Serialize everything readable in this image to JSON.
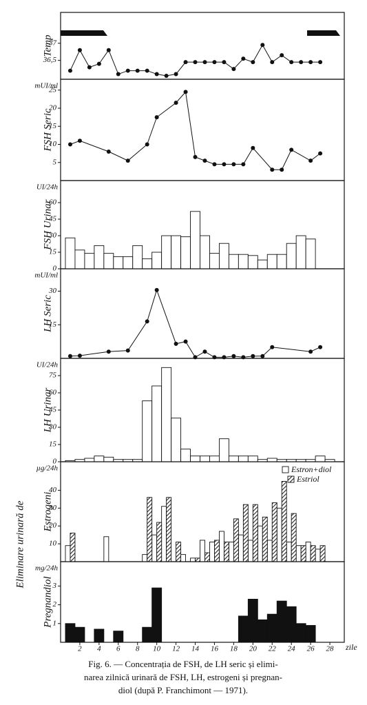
{
  "chart_data": [
    {
      "type": "line",
      "ylabel": "Temp",
      "xlim": [
        0,
        29.5
      ],
      "ylim": [
        35.95,
        37.9
      ],
      "yticks": [
        {
          "value": 36.5,
          "label": "36,5"
        },
        37
      ],
      "x": [
        1,
        2,
        3,
        4,
        5,
        6,
        7,
        8,
        9,
        10,
        11,
        12,
        13,
        14,
        15,
        16,
        17,
        18,
        19,
        20,
        21,
        22,
        23,
        24,
        25,
        26,
        27
      ],
      "values": [
        36.2,
        36.8,
        36.3,
        36.4,
        36.8,
        36.1,
        36.2,
        36.2,
        36.2,
        36.1,
        36.05,
        36.1,
        36.45,
        36.45,
        36.45,
        36.45,
        36.45,
        36.25,
        36.55,
        36.45,
        36.95,
        36.45,
        36.65,
        36.45,
        36.45,
        36.45,
        36.45
      ],
      "color": "#111111"
    },
    {
      "type": "line",
      "ylabel": "FSH Seric",
      "unit": "mUI/ml",
      "xlim": [
        0,
        29.5
      ],
      "ylim": [
        0,
        28
      ],
      "yticks": [
        5,
        10,
        15,
        20,
        25
      ],
      "x": [
        1,
        2,
        5,
        7,
        9,
        10,
        12,
        13,
        14,
        15,
        16,
        17,
        18,
        19,
        20,
        22,
        23,
        24,
        26,
        27
      ],
      "values": [
        10,
        11,
        8,
        5.5,
        10,
        17.5,
        21.5,
        24.5,
        6.5,
        5.5,
        4.5,
        4.5,
        4.5,
        4.5,
        9,
        3,
        3,
        8.5,
        5.5,
        7.5
      ],
      "color": "#111111"
    },
    {
      "type": "bar",
      "ylabel": "FSH Urinar",
      "unit": "UI/24h",
      "xlim": [
        0,
        29.5
      ],
      "ylim": [
        0,
        80
      ],
      "yticks": [
        0,
        15,
        30,
        45,
        60
      ],
      "x": [
        1,
        2,
        3,
        4,
        5,
        6,
        7,
        8,
        9,
        10,
        11,
        12,
        13,
        14,
        15,
        16,
        17,
        18,
        19,
        20,
        21,
        22,
        23,
        24,
        25,
        26
      ],
      "values": [
        28,
        17,
        14,
        21,
        14,
        11,
        11,
        21,
        9,
        15,
        30,
        30,
        29,
        52,
        30,
        14,
        23,
        13,
        13,
        12,
        8,
        13,
        13,
        23,
        30,
        27
      ],
      "color": "#ffffff"
    },
    {
      "type": "line",
      "ylabel": "LH Seric",
      "unit": "mUI/ml",
      "xlim": [
        0,
        29.5
      ],
      "ylim": [
        0,
        40
      ],
      "yticks": [
        15,
        30
      ],
      "x": [
        1,
        2,
        5,
        7,
        9,
        10,
        12,
        13,
        14,
        15,
        16,
        17,
        18,
        19,
        20,
        21,
        22,
        26,
        27
      ],
      "values": [
        1,
        1.2,
        3,
        3.5,
        16.5,
        30.5,
        6.5,
        7.5,
        0.5,
        3,
        0.5,
        0.5,
        1,
        0.5,
        1,
        1,
        5,
        3,
        5
      ],
      "color": "#111111"
    },
    {
      "type": "bar",
      "ylabel": "LH Urinar",
      "unit": "UI/24h",
      "xlim": [
        0,
        29.5
      ],
      "ylim": [
        0,
        90
      ],
      "yticks": [
        0,
        15,
        30,
        45,
        60,
        75
      ],
      "x": [
        1,
        2,
        3,
        4,
        5,
        6,
        7,
        8,
        9,
        10,
        11,
        12,
        13,
        14,
        15,
        16,
        17,
        18,
        19,
        20,
        21,
        22,
        23,
        24,
        25,
        26,
        27,
        28
      ],
      "values": [
        1,
        2,
        3,
        5,
        4,
        2,
        2,
        2,
        53,
        66,
        82,
        38,
        11,
        5,
        5,
        5,
        20,
        5,
        5,
        5,
        2,
        3,
        2,
        2,
        2,
        2,
        5,
        2
      ],
      "color": "#ffffff"
    },
    {
      "type": "bar",
      "ylabel": "Estrogeni",
      "unit": "µg/24h",
      "xlim": [
        0,
        29.5
      ],
      "ylim": [
        0,
        56
      ],
      "yticks": [
        10,
        20,
        30,
        40
      ],
      "legend": "upper right",
      "x": [
        1,
        2,
        3,
        4,
        5,
        6,
        7,
        8,
        9,
        10,
        11,
        12,
        13,
        14,
        15,
        16,
        17,
        18,
        19,
        20,
        21,
        22,
        23,
        24,
        25,
        26,
        27
      ],
      "series": [
        {
          "name": "Estron+diol",
          "color": "#ffffff",
          "values": [
            9,
            null,
            null,
            null,
            14,
            null,
            null,
            null,
            4,
            15,
            31,
            null,
            4,
            2,
            12,
            11,
            17,
            11,
            15,
            12,
            20,
            12,
            30,
            11,
            9,
            11,
            7
          ]
        },
        {
          "name": "Estriol",
          "color": "#333333",
          "pattern": "hatch",
          "values": [
            16,
            null,
            null,
            null,
            null,
            null,
            null,
            null,
            36,
            22,
            36,
            11,
            null,
            2,
            5,
            12,
            11,
            24,
            32,
            32,
            25,
            33,
            45,
            27,
            9,
            9,
            9
          ]
        }
      ]
    },
    {
      "type": "bar",
      "ylabel": "Pregnandiol",
      "unit": "mg/24h",
      "xlim": [
        0,
        29.5
      ],
      "ylim": [
        0,
        4.3
      ],
      "yticks": [
        1,
        2,
        3
      ],
      "xticks": [
        2,
        4,
        6,
        8,
        10,
        12,
        14,
        16,
        18,
        20,
        22,
        24,
        26,
        28
      ],
      "xlabel": "zile",
      "x": [
        1,
        2,
        4,
        6,
        9,
        10,
        19,
        20,
        21,
        22,
        23,
        24,
        25,
        26
      ],
      "values": [
        1,
        0.8,
        0.7,
        0.6,
        0.8,
        2.9,
        1.4,
        2.3,
        1.2,
        1.5,
        2.2,
        1.9,
        1.0,
        0.9
      ],
      "color": "#111111"
    }
  ],
  "side_label": "Eliminare urinară de",
  "caption": [
    "Fig. 6. — Concentrația de FSH, de LH seric și elimi-",
    "narea zilnică urinară de FSH, LH, estrogeni și pregnan-",
    "diol (după P. Franchimont — 1971)."
  ]
}
